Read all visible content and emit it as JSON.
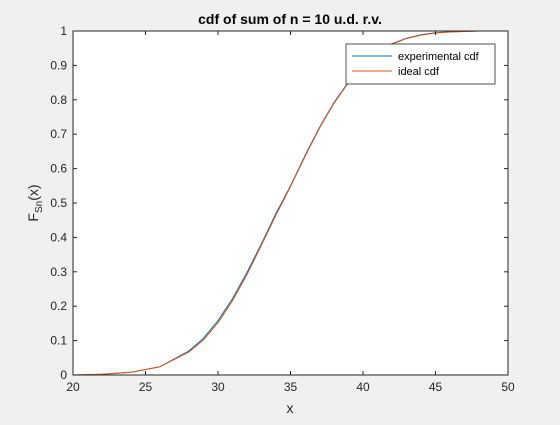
{
  "chart_data": {
    "type": "line",
    "title": "cdf of sum of n = 10 u.d. r.v.",
    "xlabel": "x",
    "ylabel": {
      "main": "F",
      "sub": "Sn",
      "suffix": "(x)"
    },
    "xlim": [
      20,
      50
    ],
    "ylim": [
      0,
      1
    ],
    "xticks": [
      20,
      25,
      30,
      35,
      40,
      45,
      50
    ],
    "yticks": [
      0,
      0.1,
      0.2,
      0.3,
      0.4,
      0.5,
      0.6,
      0.7,
      0.8,
      0.9,
      1
    ],
    "ytick_labels": [
      "0",
      "0.1",
      "0.2",
      "0.3",
      "0.4",
      "0.5",
      "0.6",
      "0.7",
      "0.8",
      "0.9",
      "1"
    ],
    "grid": false,
    "legend_position": "top-right",
    "series": [
      {
        "name": "experimental cdf",
        "color": "#0072BD",
        "x": [
          20,
          22,
          24,
          26,
          28,
          29,
          30,
          31,
          32,
          33,
          34,
          35,
          36,
          37,
          38,
          39,
          40,
          41,
          42,
          43,
          44,
          45,
          46,
          48,
          50
        ],
        "y": [
          0.0,
          0.002,
          0.008,
          0.024,
          0.07,
          0.107,
          0.158,
          0.222,
          0.298,
          0.382,
          0.47,
          0.55,
          0.638,
          0.72,
          0.792,
          0.852,
          0.902,
          0.938,
          0.963,
          0.979,
          0.989,
          0.995,
          0.998,
          1.0,
          1.0
        ]
      },
      {
        "name": "ideal cdf",
        "color": "#D95319",
        "x": [
          20,
          22,
          24,
          26,
          28,
          29,
          30,
          31,
          32,
          33,
          34,
          35,
          36,
          37,
          38,
          39,
          40,
          41,
          42,
          43,
          44,
          45,
          46,
          48,
          50
        ],
        "y": [
          0.0,
          0.002,
          0.008,
          0.024,
          0.067,
          0.102,
          0.152,
          0.216,
          0.292,
          0.378,
          0.465,
          0.548,
          0.635,
          0.718,
          0.79,
          0.85,
          0.9,
          0.937,
          0.962,
          0.978,
          0.988,
          0.994,
          0.997,
          1.0,
          1.0
        ]
      }
    ]
  }
}
